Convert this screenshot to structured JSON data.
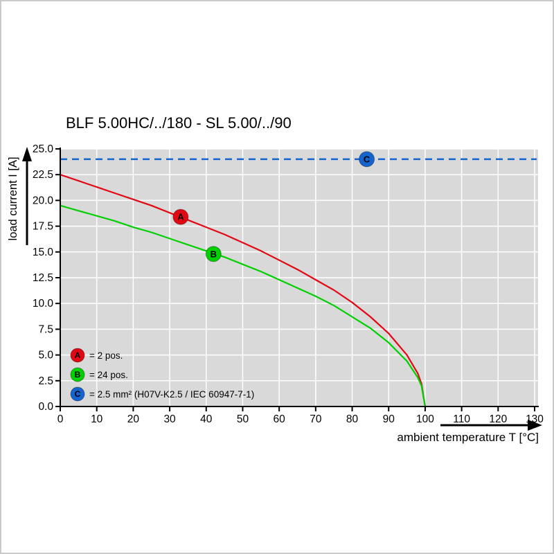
{
  "title": "BLF 5.00HC/../180 - SL 5.00/../90",
  "chart_data": {
    "type": "line",
    "title": "BLF 5.00HC/../180 - SL 5.00/../90",
    "xlabel": "ambient temperature T [°C]",
    "ylabel": "load current I [A]",
    "xlim": [
      0,
      130
    ],
    "ylim": [
      0,
      25
    ],
    "xticks": [
      0,
      10,
      20,
      30,
      40,
      50,
      60,
      70,
      80,
      90,
      100,
      110,
      120,
      130
    ],
    "yticks": [
      0,
      2.5,
      5,
      7.5,
      10,
      12.5,
      15,
      17.5,
      20,
      22.5,
      25
    ],
    "ytick_labels": [
      "0.0",
      "2.5",
      "5.0",
      "7.5",
      "10.0",
      "12.5",
      "15.0",
      "17.5",
      "20.0",
      "22.5",
      "25.0"
    ],
    "grid": true,
    "plot_bg": "#d9d9d9",
    "grid_color": "#ffffff",
    "legend_position": "bottom-left-inside",
    "series": [
      {
        "name": "A",
        "label": "= 2 pos.",
        "color": "#e30613",
        "style": "solid",
        "marker": {
          "x": 33,
          "y": 18.4
        },
        "points": [
          [
            0,
            22.5
          ],
          [
            5,
            21.9
          ],
          [
            10,
            21.3
          ],
          [
            15,
            20.7
          ],
          [
            20,
            20.1
          ],
          [
            25,
            19.5
          ],
          [
            30,
            18.8
          ],
          [
            35,
            18.1
          ],
          [
            40,
            17.4
          ],
          [
            45,
            16.7
          ],
          [
            50,
            15.9
          ],
          [
            55,
            15.1
          ],
          [
            60,
            14.2
          ],
          [
            65,
            13.3
          ],
          [
            70,
            12.3
          ],
          [
            75,
            11.3
          ],
          [
            80,
            10.1
          ],
          [
            85,
            8.7
          ],
          [
            90,
            7.1
          ],
          [
            95,
            5.0
          ],
          [
            98,
            3.2
          ],
          [
            99,
            2.2
          ],
          [
            100,
            0
          ]
        ]
      },
      {
        "name": "B",
        "label": "= 24 pos.",
        "color": "#00cf00",
        "style": "solid",
        "marker": {
          "x": 42,
          "y": 14.8
        },
        "points": [
          [
            0,
            19.5
          ],
          [
            5,
            19.0
          ],
          [
            10,
            18.5
          ],
          [
            15,
            18.0
          ],
          [
            20,
            17.4
          ],
          [
            25,
            16.9
          ],
          [
            30,
            16.3
          ],
          [
            35,
            15.7
          ],
          [
            40,
            15.1
          ],
          [
            45,
            14.5
          ],
          [
            50,
            13.8
          ],
          [
            55,
            13.1
          ],
          [
            60,
            12.3
          ],
          [
            65,
            11.5
          ],
          [
            70,
            10.7
          ],
          [
            75,
            9.8
          ],
          [
            80,
            8.7
          ],
          [
            85,
            7.6
          ],
          [
            90,
            6.2
          ],
          [
            95,
            4.4
          ],
          [
            98,
            2.8
          ],
          [
            99,
            2.0
          ],
          [
            100,
            0
          ]
        ]
      },
      {
        "name": "C",
        "label": "= 2.5 mm² (H07V-K2.5 / IEC 60947-7-1)",
        "color": "#1563cf",
        "style": "dashed",
        "marker": {
          "x": 84,
          "y": 24
        },
        "points": [
          [
            0,
            24
          ],
          [
            130,
            24
          ]
        ]
      }
    ]
  }
}
